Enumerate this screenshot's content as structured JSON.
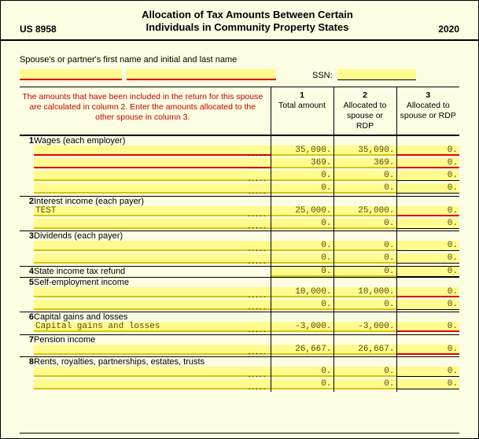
{
  "form": {
    "code": "US 8958",
    "title_l1": "Allocation of Tax Amounts Between Certain",
    "title_l2": "Individuals in Community Property States",
    "year": "2020"
  },
  "name_block": {
    "label": "Spouse's or partner's first name and initial and last name",
    "ssn_label": "SSN:"
  },
  "head": {
    "desc": "The amounts that have been included in the return for this spouse are calculated in column 2.  Enter the amounts allocated to the other spouse in column 3.",
    "c1_num": "1",
    "c1_lbl": "Total amount",
    "c2_num": "2",
    "c2_lbl": "Allocated to spouse or RDP",
    "c3_num": "3",
    "c3_lbl": "Allocated to spouse or RDP"
  },
  "style": {
    "bg": "#fdfde3",
    "hl": "#fffb8f",
    "rule_red": "#e30000",
    "rule_gold": "#d9c400",
    "mono_color": "#5a4a00",
    "warn_color": "#c00000"
  },
  "sections": [
    {
      "num": "1",
      "label": "Wages  (each employer)",
      "rows": [
        {
          "desc": "",
          "desc_rule": "red",
          "c1": "35,090.",
          "c1_rule": "gold",
          "c2": "35,090.",
          "c2_rule": "gold",
          "c3": "0.",
          "c3_rule": "red"
        },
        {
          "desc": "",
          "desc_rule": "red",
          "c1": "369.",
          "c1_rule": "gold",
          "c2": "369.",
          "c2_rule": "gold",
          "c3": "0.",
          "c3_rule": "red"
        },
        {
          "desc": "",
          "desc_rule": "gold",
          "c1": "0.",
          "c1_rule": "gold",
          "c2": "0.",
          "c2_rule": "gold",
          "c3": "0.",
          "c3_rule": "blk"
        },
        {
          "desc": "",
          "desc_rule": "gold",
          "c1": "0.",
          "c1_rule": "gold",
          "c2": "0.",
          "c2_rule": "gold",
          "c3": "0.",
          "c3_rule": "blk"
        }
      ]
    },
    {
      "num": "2",
      "label": "Interest income  (each payer)",
      "rows": [
        {
          "desc": "TEST",
          "desc_rule": "gold",
          "c1": "25,000.",
          "c1_rule": "gold",
          "c2": "25,000.",
          "c2_rule": "gold",
          "c3": "0.",
          "c3_rule": "red"
        },
        {
          "desc": "",
          "desc_rule": "gold",
          "c1": "0.",
          "c1_rule": "gold",
          "c2": "0.",
          "c2_rule": "gold",
          "c3": "0.",
          "c3_rule": "blk"
        }
      ]
    },
    {
      "num": "3",
      "label": "Dividends  (each payer)",
      "rows": [
        {
          "desc": "",
          "desc_rule": "gold",
          "c1": "0.",
          "c1_rule": "gold",
          "c2": "0.",
          "c2_rule": "gold",
          "c3": "0.",
          "c3_rule": "blk"
        },
        {
          "desc": "",
          "desc_rule": "gold",
          "c1": "0.",
          "c1_rule": "gold",
          "c2": "0.",
          "c2_rule": "gold",
          "c3": "0.",
          "c3_rule": "blk"
        }
      ]
    },
    {
      "num": "4",
      "label": "State income tax refund",
      "rows": [
        {
          "nodescline": true,
          "c1": "0.",
          "c1_rule": "gold",
          "c2": "0.",
          "c2_rule": "gold",
          "c3": "0.",
          "c3_rule": "blk",
          "samerow": true
        }
      ]
    },
    {
      "num": "5",
      "label": "Self-employment income",
      "rows": [
        {
          "desc": "",
          "desc_rule": "gold",
          "c1": "10,000.",
          "c1_rule": "gold",
          "c2": "10,000.",
          "c2_rule": "gold",
          "c3": "0.",
          "c3_rule": "red"
        },
        {
          "desc": "",
          "desc_rule": "gold",
          "c1": "0.",
          "c1_rule": "gold",
          "c2": "0.",
          "c2_rule": "gold",
          "c3": "0.",
          "c3_rule": "blk"
        }
      ]
    },
    {
      "num": "6",
      "label": "Capital gains and losses",
      "rows": [
        {
          "desc": "Capital gains and losses",
          "desc_rule": "gold",
          "c1": "-3,000.",
          "c1_rule": "gold",
          "c2": "-3,000.",
          "c2_rule": "gold",
          "c3": "0.",
          "c3_rule": "red"
        }
      ]
    },
    {
      "num": "7",
      "label": "Pension income",
      "rows": [
        {
          "desc": "",
          "desc_rule": "gold",
          "c1": "26,667.",
          "c1_rule": "gold",
          "c2": "26,667.",
          "c2_rule": "gold",
          "c3": "0.",
          "c3_rule": "red"
        }
      ]
    },
    {
      "num": "8",
      "label": "Rents,  royalties,  partnerships,  estates,  trusts",
      "rows": [
        {
          "desc": "",
          "desc_rule": "gold",
          "c1": "0.",
          "c1_rule": "gold",
          "c2": "0.",
          "c2_rule": "gold",
          "c3": "0.",
          "c3_rule": "blk"
        },
        {
          "desc": "",
          "desc_rule": "gold",
          "c1": "0.",
          "c1_rule": "gold",
          "c2": "0.",
          "c2_rule": "gold",
          "c3": "0.",
          "c3_rule": "blk"
        }
      ]
    }
  ]
}
